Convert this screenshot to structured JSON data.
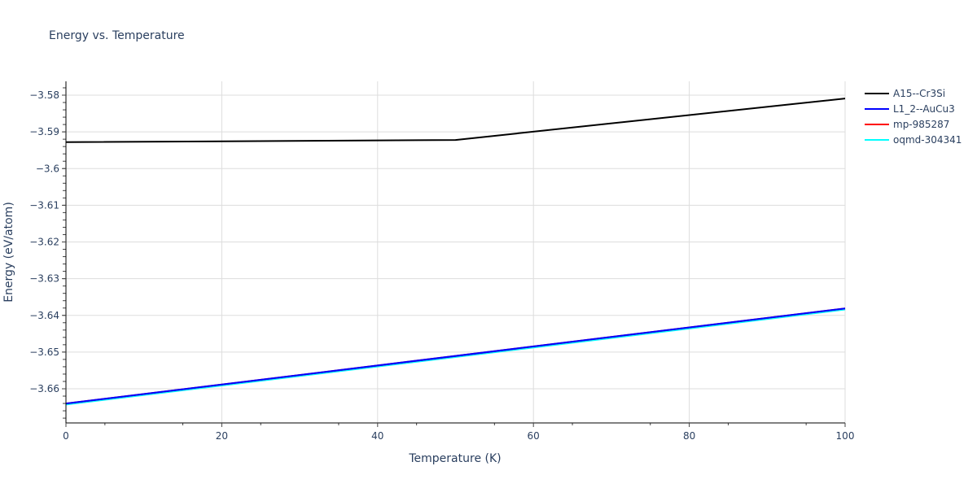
{
  "chart_data": {
    "type": "line",
    "title": "Energy vs. Temperature",
    "xlabel": "Temperature (K)",
    "ylabel": "Energy (eV/atom)",
    "xlim": [
      0,
      100
    ],
    "ylim": [
      -3.6678,
      -3.5763
    ],
    "x_ticks": [
      0,
      20,
      40,
      60,
      80,
      100
    ],
    "y_ticks": [
      -3.58,
      -3.59,
      -3.6,
      -3.61,
      -3.62,
      -3.63,
      -3.64,
      -3.65,
      -3.66
    ],
    "y_tick_labels": [
      "−3.58",
      "−3.59",
      "−3.6",
      "−3.61",
      "−3.62",
      "−3.63",
      "−3.64",
      "−3.65",
      "−3.66"
    ],
    "grid": true,
    "legend_position": "right-top",
    "series": [
      {
        "name": "A15--Cr3Si",
        "color": "#000000",
        "x": [
          0,
          50,
          100
        ],
        "y": [
          -3.5928,
          -3.5922,
          -3.5809
        ]
      },
      {
        "name": "L1_2--AuCu3",
        "color": "#0000ff",
        "x": [
          0,
          100
        ],
        "y": [
          -3.664,
          -3.6381
        ]
      },
      {
        "name": "mp-985287",
        "color": "#ff0000",
        "x": [
          0,
          100
        ],
        "y": [
          -3.664,
          -3.6381
        ]
      },
      {
        "name": "oqmd-304341",
        "color": "#00ffff",
        "x": [
          0,
          100
        ],
        "y": [
          -3.6643,
          -3.6384
        ]
      }
    ]
  }
}
